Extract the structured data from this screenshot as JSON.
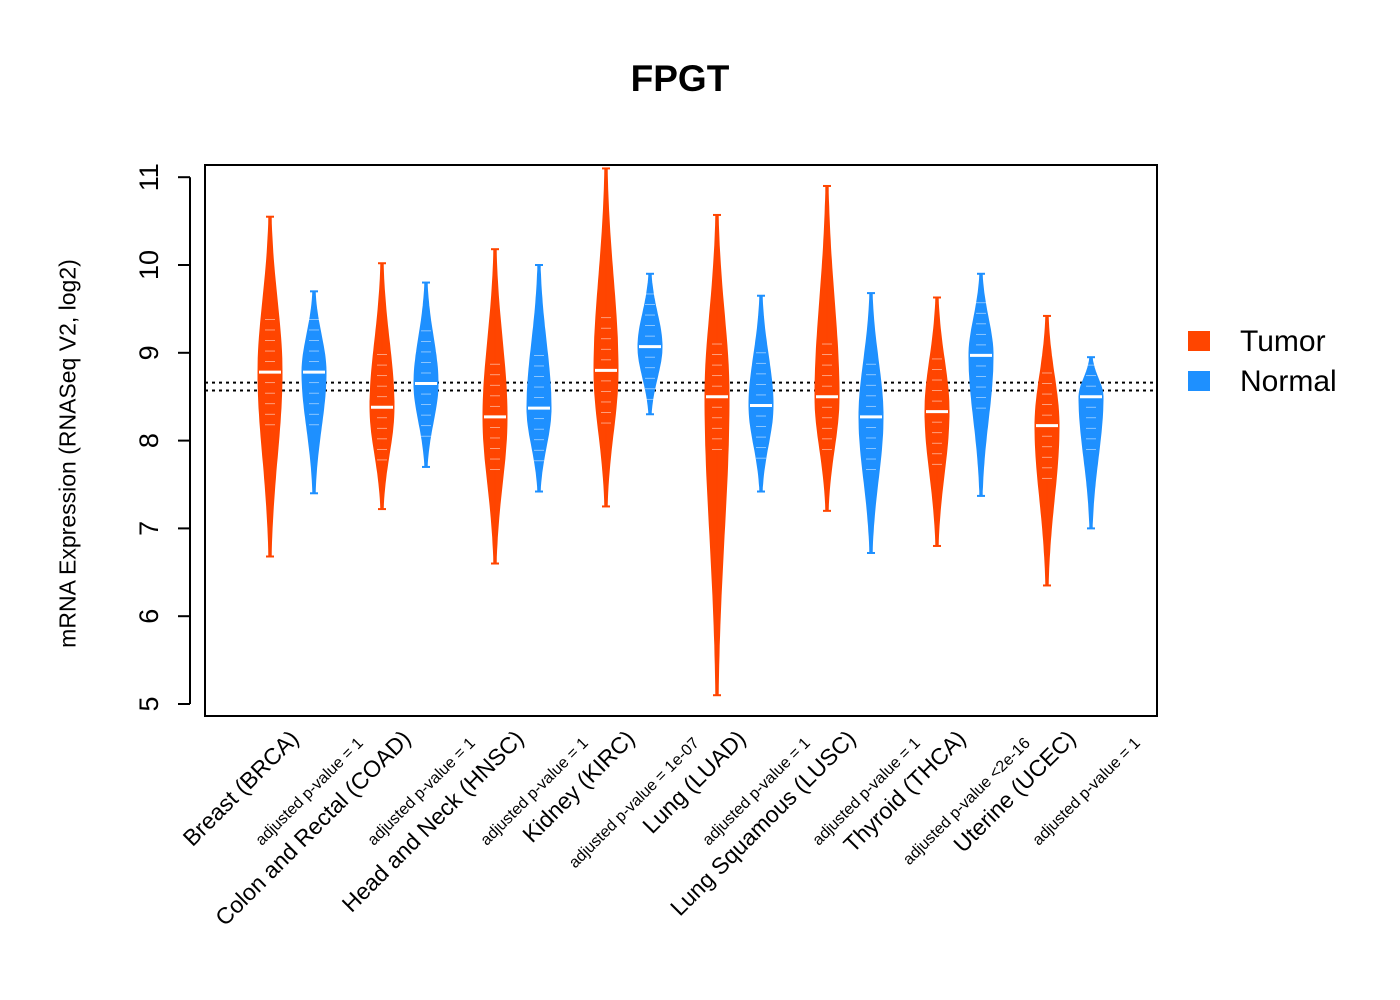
{
  "chart_data": {
    "type": "violin",
    "title": "FPGT",
    "xlabel": "",
    "ylabel": "mRNA Expression (RNASeq V2, log2)",
    "ylim": [
      5,
      11
    ],
    "yticks": [
      "5",
      "6",
      "7",
      "8",
      "9",
      "10",
      "11"
    ],
    "reference_lines": [
      8.57,
      8.66
    ],
    "legend": {
      "position": "right",
      "entries": [
        {
          "label": "Tumor",
          "color": "#FF4500"
        },
        {
          "label": "Normal",
          "color": "#1E90FF"
        }
      ]
    },
    "categories": [
      {
        "label": "Breast (BRCA)",
        "pvalue": "adjusted p-value = 1"
      },
      {
        "label": "Colon and Rectal (COAD)",
        "pvalue": "adjusted p-value = 1"
      },
      {
        "label": "Head and Neck (HNSC)",
        "pvalue": "adjusted p-value = 1"
      },
      {
        "label": "Kidney (KIRC)",
        "pvalue": "adjusted p-value = 1e-07"
      },
      {
        "label": "Lung (LUAD)",
        "pvalue": "adjusted p-value = 1"
      },
      {
        "label": "Lung Squamous (LUSC)",
        "pvalue": "adjusted p-value = 1"
      },
      {
        "label": "Thyroid (THCA)",
        "pvalue": "adjusted p-value <2e-16"
      },
      {
        "label": "Uterine (UCEC)",
        "pvalue": "adjusted p-value = 1"
      }
    ],
    "series": [
      {
        "name": "Tumor",
        "color": "#FF4500",
        "median": [
          8.78,
          8.38,
          8.27,
          8.8,
          8.5,
          8.5,
          8.33,
          8.17
        ],
        "min": [
          6.68,
          7.22,
          6.6,
          7.25,
          5.1,
          7.2,
          6.8,
          6.35
        ],
        "max": [
          10.55,
          10.02,
          10.18,
          11.1,
          10.57,
          10.9,
          9.63,
          9.42
        ]
      },
      {
        "name": "Normal",
        "color": "#1E90FF",
        "median": [
          8.78,
          8.65,
          8.37,
          9.07,
          8.4,
          8.27,
          8.97,
          8.5
        ],
        "min": [
          7.4,
          7.7,
          7.42,
          8.3,
          7.42,
          6.72,
          7.37,
          7.0
        ],
        "max": [
          9.7,
          9.8,
          10.0,
          9.9,
          9.65,
          9.68,
          9.9,
          8.95
        ]
      }
    ]
  }
}
